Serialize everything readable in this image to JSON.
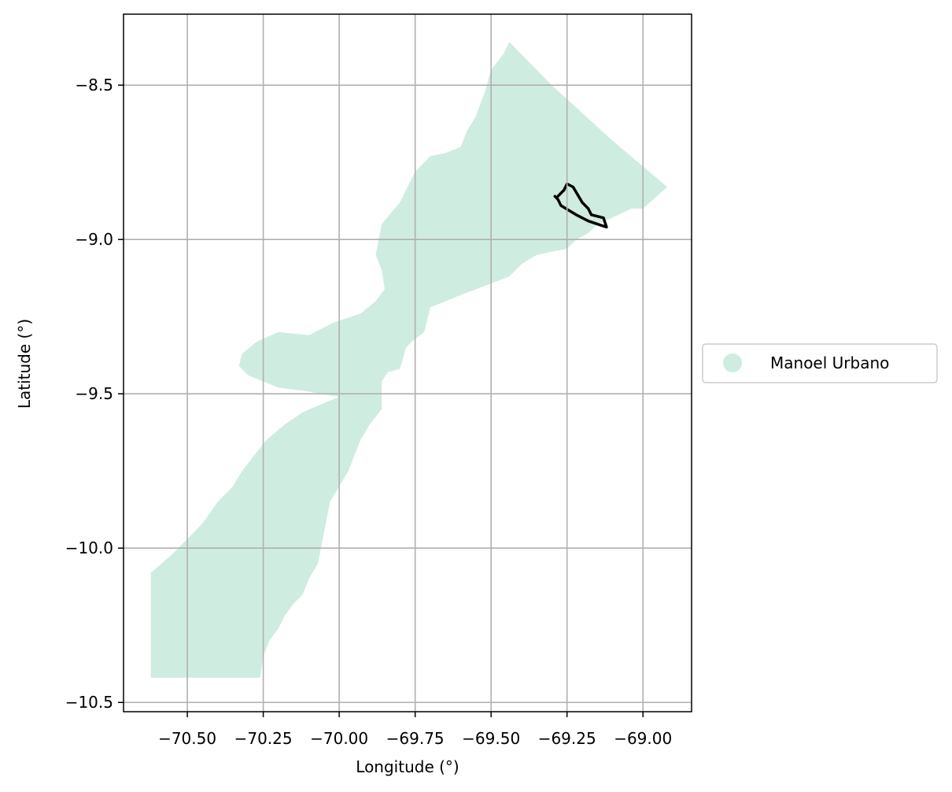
{
  "chart_data": {
    "type": "map",
    "title": "",
    "xlabel": "Longitude (°)",
    "ylabel": "Latitude (°)",
    "xlim": [
      -70.71,
      -68.84
    ],
    "ylim": [
      -10.53,
      -8.27
    ],
    "grid": true,
    "legend_position": "outside-right",
    "x_ticks": [
      {
        "value": -70.5,
        "label": "−70.50"
      },
      {
        "value": -70.25,
        "label": "−70.25"
      },
      {
        "value": -70.0,
        "label": "−70.00"
      },
      {
        "value": -69.75,
        "label": "−69.75"
      },
      {
        "value": -69.5,
        "label": "−69.50"
      },
      {
        "value": -69.25,
        "label": "−69.25"
      },
      {
        "value": -69.0,
        "label": "−69.00"
      }
    ],
    "y_ticks": [
      {
        "value": -8.5,
        "label": "−8.5"
      },
      {
        "value": -9.0,
        "label": "−9.0"
      },
      {
        "value": -9.5,
        "label": "−9.5"
      },
      {
        "value": -10.0,
        "label": "−10.0"
      },
      {
        "value": -10.5,
        "label": "−10.5"
      }
    ],
    "series": [
      {
        "name": "Manoel Urbano",
        "kind": "polygon",
        "color": "#cfece0",
        "coordinates": [
          [
            -69.44,
            -8.36
          ],
          [
            -69.3,
            -8.5
          ],
          [
            -69.1,
            -8.68
          ],
          [
            -68.92,
            -8.83
          ],
          [
            -69.0,
            -8.9
          ],
          [
            -69.04,
            -8.9
          ],
          [
            -69.08,
            -8.92
          ],
          [
            -69.15,
            -8.95
          ],
          [
            -69.18,
            -8.98
          ],
          [
            -69.22,
            -9.0
          ],
          [
            -69.25,
            -9.03
          ],
          [
            -69.35,
            -9.05
          ],
          [
            -69.4,
            -9.08
          ],
          [
            -69.44,
            -9.12
          ],
          [
            -69.52,
            -9.15
          ],
          [
            -69.6,
            -9.18
          ],
          [
            -69.65,
            -9.2
          ],
          [
            -69.7,
            -9.22
          ],
          [
            -69.72,
            -9.3
          ],
          [
            -69.76,
            -9.33
          ],
          [
            -69.78,
            -9.35
          ],
          [
            -69.8,
            -9.42
          ],
          [
            -69.84,
            -9.43
          ],
          [
            -69.86,
            -9.46
          ],
          [
            -69.86,
            -9.5
          ],
          [
            -69.86,
            -9.55
          ],
          [
            -69.9,
            -9.6
          ],
          [
            -69.93,
            -9.65
          ],
          [
            -69.95,
            -9.7
          ],
          [
            -69.97,
            -9.75
          ],
          [
            -70.0,
            -9.8
          ],
          [
            -70.03,
            -9.85
          ],
          [
            -70.05,
            -9.95
          ],
          [
            -70.07,
            -10.05
          ],
          [
            -70.1,
            -10.1
          ],
          [
            -70.12,
            -10.15
          ],
          [
            -70.15,
            -10.18
          ],
          [
            -70.18,
            -10.22
          ],
          [
            -70.2,
            -10.26
          ],
          [
            -70.23,
            -10.3
          ],
          [
            -70.25,
            -10.35
          ],
          [
            -70.26,
            -10.42
          ],
          [
            -70.62,
            -10.42
          ],
          [
            -70.62,
            -10.08
          ],
          [
            -70.55,
            -10.02
          ],
          [
            -70.5,
            -9.97
          ],
          [
            -70.45,
            -9.92
          ],
          [
            -70.4,
            -9.85
          ],
          [
            -70.35,
            -9.8
          ],
          [
            -70.32,
            -9.75
          ],
          [
            -70.28,
            -9.7
          ],
          [
            -70.24,
            -9.65
          ],
          [
            -70.18,
            -9.6
          ],
          [
            -70.12,
            -9.56
          ],
          [
            -70.05,
            -9.53
          ],
          [
            -70.0,
            -9.51
          ],
          [
            -70.12,
            -9.49
          ],
          [
            -70.2,
            -9.48
          ],
          [
            -70.3,
            -9.44
          ],
          [
            -70.33,
            -9.41
          ],
          [
            -70.32,
            -9.37
          ],
          [
            -70.27,
            -9.33
          ],
          [
            -70.2,
            -9.3
          ],
          [
            -70.1,
            -9.31
          ],
          [
            -70.02,
            -9.27
          ],
          [
            -69.93,
            -9.24
          ],
          [
            -69.88,
            -9.2
          ],
          [
            -69.85,
            -9.16
          ],
          [
            -69.86,
            -9.1
          ],
          [
            -69.88,
            -9.05
          ],
          [
            -69.86,
            -8.95
          ],
          [
            -69.8,
            -8.88
          ],
          [
            -69.75,
            -8.78
          ],
          [
            -69.7,
            -8.73
          ],
          [
            -69.65,
            -8.72
          ],
          [
            -69.6,
            -8.7
          ],
          [
            -69.58,
            -8.65
          ],
          [
            -69.55,
            -8.6
          ],
          [
            -69.52,
            -8.52
          ],
          [
            -69.5,
            -8.45
          ],
          [
            -69.46,
            -8.4
          ]
        ]
      },
      {
        "name": "",
        "kind": "outline",
        "color": "#000000",
        "coordinates": [
          [
            -69.28,
            -8.86
          ],
          [
            -69.26,
            -8.84
          ],
          [
            -69.25,
            -8.82
          ],
          [
            -69.23,
            -8.83
          ],
          [
            -69.2,
            -8.88
          ],
          [
            -69.18,
            -8.9
          ],
          [
            -69.17,
            -8.92
          ],
          [
            -69.13,
            -8.93
          ],
          [
            -69.12,
            -8.96
          ],
          [
            -69.18,
            -8.94
          ],
          [
            -69.22,
            -8.92
          ],
          [
            -69.27,
            -8.89
          ],
          [
            -69.28,
            -8.87
          ],
          [
            -69.29,
            -8.86
          ]
        ]
      }
    ],
    "legend": [
      {
        "label": "Manoel Urbano",
        "color": "#cfece0"
      }
    ]
  }
}
